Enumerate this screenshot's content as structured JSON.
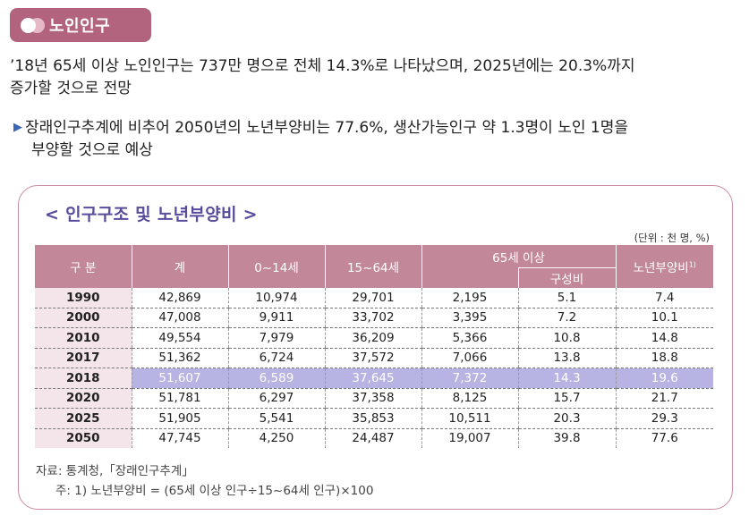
{
  "badge": {
    "label": "노인인구"
  },
  "paragraph1": {
    "line1": "’18년 65세 이상 노인인구는 737만 명으로 전체 14.3%로 나타났으며, 2025년에는 20.3%까지",
    "line2": "증가할 것으로 전망"
  },
  "paragraph2": {
    "bullet": "▶",
    "line1": "장래인구추계에 비추어 2050년의 노년부양비는 77.6%, 생산가능인구 약 1.3명이 노인 1명을",
    "line2": "부양할 것으로 예상"
  },
  "table_title": "< 인구구조 및 노년부양비 >",
  "unit": "(단위 : 천 명, %)",
  "table": {
    "headers": {
      "category": "구 분",
      "total": "계",
      "age0_14": "0~14세",
      "age15_64": "15~64세",
      "age65": "65세 이상",
      "ratio": "구성비",
      "dependency": "노년부양비",
      "dependency_note": "1)"
    },
    "rows": [
      {
        "year": "1990",
        "total": "42,869",
        "a0_14": "10,974",
        "a15_64": "29,701",
        "a65": "2,195",
        "ratio": "5.1",
        "dep": "7.4"
      },
      {
        "year": "2000",
        "total": "47,008",
        "a0_14": "9,911",
        "a15_64": "33,702",
        "a65": "3,395",
        "ratio": "7.2",
        "dep": "10.1"
      },
      {
        "year": "2010",
        "total": "49,554",
        "a0_14": "7,979",
        "a15_64": "36,209",
        "a65": "5,366",
        "ratio": "10.8",
        "dep": "14.8"
      },
      {
        "year": "2017",
        "total": "51,362",
        "a0_14": "6,724",
        "a15_64": "37,572",
        "a65": "7,066",
        "ratio": "13.8",
        "dep": "18.8"
      },
      {
        "year": "2018",
        "total": "51,607",
        "a0_14": "6,589",
        "a15_64": "37,645",
        "a65": "7,372",
        "ratio": "14.3",
        "dep": "19.6"
      },
      {
        "year": "2020",
        "total": "51,781",
        "a0_14": "6,297",
        "a15_64": "37,358",
        "a65": "8,125",
        "ratio": "15.7",
        "dep": "21.7"
      },
      {
        "year": "2025",
        "total": "51,905",
        "a0_14": "5,541",
        "a15_64": "35,853",
        "a65": "10,511",
        "ratio": "20.3",
        "dep": "29.3"
      },
      {
        "year": "2050",
        "total": "47,745",
        "a0_14": "4,250",
        "a15_64": "24,487",
        "a65": "19,007",
        "ratio": "39.8",
        "dep": "77.6"
      }
    ],
    "highlight_year": "2018"
  },
  "source": "자료: 통계청,「장래인구추계」",
  "footnote": "주: 1) 노년부양비 = (65세 이상 인구÷15~64세 인구)×100",
  "colors": {
    "accent": "#b2647e",
    "header": "#c3879a",
    "highlight": "#b7b3e3",
    "title": "#5a4c9c"
  }
}
